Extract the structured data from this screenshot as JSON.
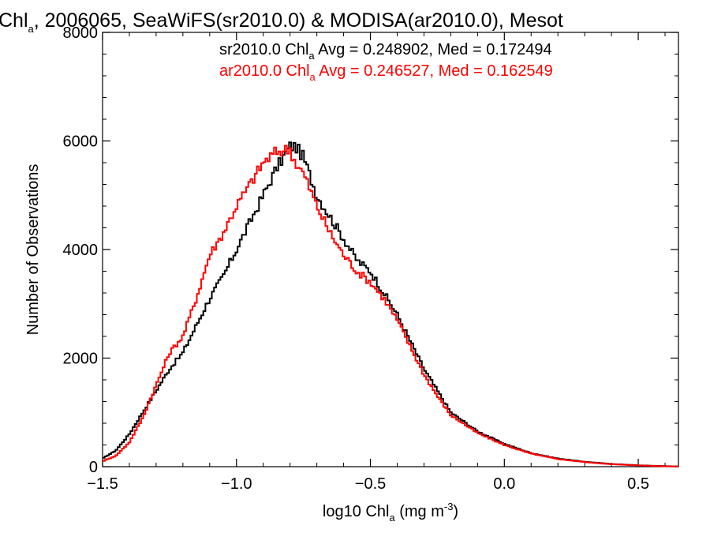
{
  "chart_data": {
    "type": "line",
    "title_main": "Chl",
    "title_sub": "a",
    "title_rest": ", 2006065, SeaWiFS(sr2010.0) & MODISA(ar2010.0), Mesot",
    "xlabel_main": "log10 Chl",
    "xlabel_sub": "a",
    "xlabel_rest": " (mg m",
    "xlabel_sup": "-3",
    "xlabel_end": ")",
    "ylabel": "Number of Observations",
    "xlim": [
      -1.5,
      0.65
    ],
    "ylim": [
      0,
      8000
    ],
    "x_ticks": [
      -1.5,
      -1.0,
      -0.5,
      0.0,
      0.5
    ],
    "x_tick_labels": [
      "−1.5",
      "−1.0",
      "−0.5",
      "0.0",
      "0.5"
    ],
    "y_ticks": [
      0,
      2000,
      4000,
      6000,
      8000
    ],
    "y_tick_labels": [
      "0",
      "2000",
      "4000",
      "6000",
      "8000"
    ],
    "annotations": [
      {
        "prefix": "sr2010.0 Chl",
        "sub": "a",
        "suffix": " Avg = 0.248902, Med = 0.172494",
        "color": "#000000"
      },
      {
        "prefix": "ar2010.0 Chl",
        "sub": "a",
        "suffix": " Avg = 0.246527, Med = 0.162549",
        "color": "#ff0000"
      }
    ],
    "series": [
      {
        "color": "#000000",
        "x": [
          -1.5,
          -1.45,
          -1.4,
          -1.35,
          -1.3,
          -1.25,
          -1.2,
          -1.15,
          -1.1,
          -1.05,
          -1.0,
          -0.95,
          -0.9,
          -0.85,
          -0.8,
          -0.78,
          -0.75,
          -0.7,
          -0.65,
          -0.6,
          -0.55,
          -0.5,
          -0.45,
          -0.4,
          -0.35,
          -0.3,
          -0.25,
          -0.2,
          -0.1,
          0.0,
          0.1,
          0.2,
          0.3,
          0.4,
          0.5,
          0.6,
          0.65
        ],
        "y": [
          150,
          300,
          600,
          1000,
          1400,
          1800,
          2100,
          2600,
          3100,
          3500,
          4000,
          4500,
          5000,
          5500,
          5900,
          5900,
          5700,
          5000,
          4600,
          4200,
          3800,
          3600,
          3200,
          2800,
          2300,
          1800,
          1400,
          1000,
          650,
          420,
          250,
          150,
          90,
          50,
          25,
          10,
          5
        ]
      },
      {
        "color": "#ff0000",
        "x": [
          -1.5,
          -1.45,
          -1.4,
          -1.35,
          -1.3,
          -1.25,
          -1.2,
          -1.15,
          -1.1,
          -1.05,
          -1.0,
          -0.95,
          -0.9,
          -0.85,
          -0.8,
          -0.78,
          -0.75,
          -0.7,
          -0.65,
          -0.6,
          -0.55,
          -0.5,
          -0.45,
          -0.4,
          -0.35,
          -0.3,
          -0.25,
          -0.2,
          -0.1,
          0.0,
          0.1,
          0.2,
          0.3,
          0.4,
          0.5,
          0.6,
          0.65
        ],
        "y": [
          100,
          200,
          450,
          900,
          1500,
          2100,
          2400,
          3100,
          3900,
          4300,
          4800,
          5200,
          5600,
          5800,
          5850,
          5600,
          5400,
          4800,
          4300,
          3900,
          3600,
          3400,
          3100,
          2700,
          2200,
          1700,
          1300,
          950,
          620,
          400,
          240,
          140,
          85,
          45,
          22,
          8,
          4
        ]
      }
    ]
  }
}
